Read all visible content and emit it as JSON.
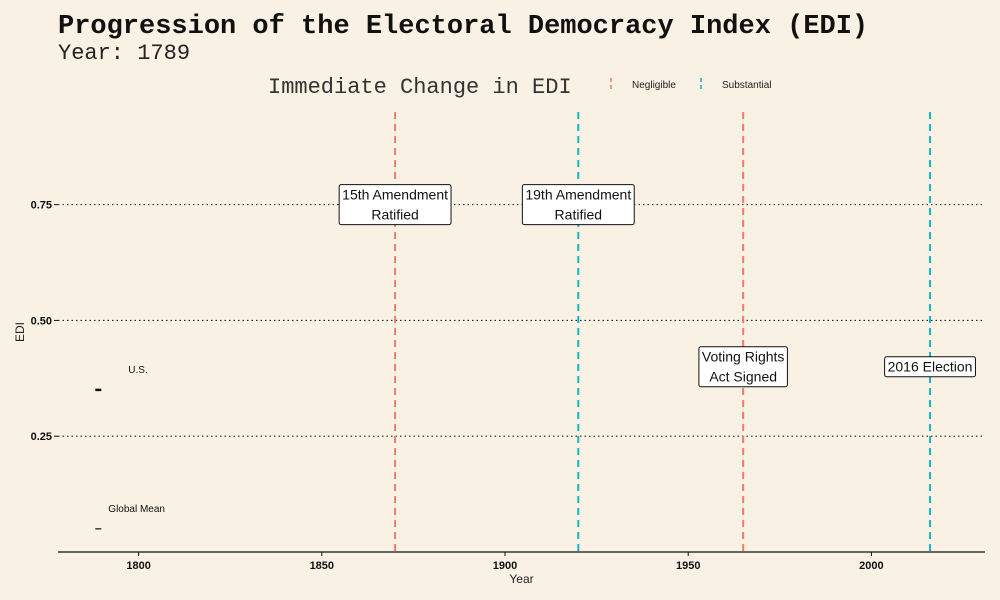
{
  "title": "Progression of the Electoral Democracy Index (EDI)",
  "subtitle": "Year: 1789",
  "legend": {
    "title": "Immediate Change in EDI",
    "items": [
      {
        "label": "Negligible",
        "color": "#f07b6c"
      },
      {
        "label": "Substantial",
        "color": "#13b6c2"
      }
    ]
  },
  "chart_data": {
    "type": "line",
    "title": "Progression of the Electoral Democracy Index (EDI)",
    "subtitle": "Year: 1789",
    "xlabel": "Year",
    "ylabel": "EDI",
    "xlim": [
      1778,
      2031
    ],
    "ylim": [
      0,
      0.95
    ],
    "x_ticks": [
      1800,
      1850,
      1900,
      1950,
      2000
    ],
    "y_ticks": [
      0.25,
      0.5,
      0.75
    ],
    "y_tick_labels": [
      "0.25",
      "0.50",
      "0.75"
    ],
    "grid": "horizontal dotted",
    "legend_placement": "top",
    "series": [
      {
        "name": "U.S.",
        "x": [
          1789
        ],
        "y": [
          0.35
        ]
      },
      {
        "name": "Global Mean",
        "x": [
          1789
        ],
        "y": [
          0.05
        ]
      }
    ],
    "events": [
      {
        "year": 1870,
        "label": [
          "15th Amendment",
          "Ratified"
        ],
        "label_y": 0.75,
        "change": "Negligible"
      },
      {
        "year": 1920,
        "label": [
          "19th Amendment",
          "Ratified"
        ],
        "label_y": 0.75,
        "change": "Substantial"
      },
      {
        "year": 1965,
        "label": [
          "Voting Rights",
          "Act Signed"
        ],
        "label_y": 0.4,
        "change": "Negligible"
      },
      {
        "year": 2016,
        "label": [
          "2016 Election"
        ],
        "label_y": 0.4,
        "change": "Substantial"
      }
    ]
  }
}
